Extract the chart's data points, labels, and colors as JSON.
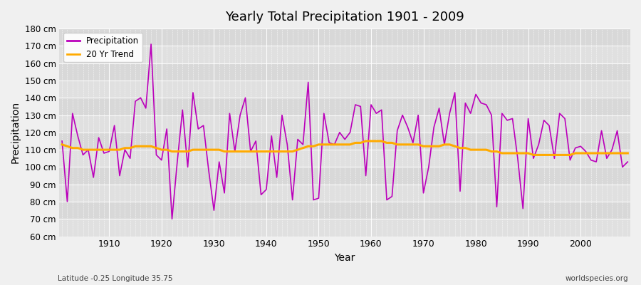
{
  "title": "Yearly Total Precipitation 1901 - 2009",
  "xlabel": "Year",
  "ylabel": "Precipitation",
  "footnote_left": "Latitude -0.25 Longitude 35.75",
  "footnote_right": "worldspecies.org",
  "line_color": "#bb00bb",
  "trend_color": "#ffaa00",
  "ylim": [
    60,
    180
  ],
  "ytick_step": 10,
  "xticks": [
    1910,
    1920,
    1930,
    1940,
    1950,
    1960,
    1970,
    1980,
    1990,
    2000
  ],
  "years": [
    1901,
    1902,
    1903,
    1904,
    1905,
    1906,
    1907,
    1908,
    1909,
    1910,
    1911,
    1912,
    1913,
    1914,
    1915,
    1916,
    1917,
    1918,
    1919,
    1920,
    1921,
    1922,
    1923,
    1924,
    1925,
    1926,
    1927,
    1928,
    1929,
    1930,
    1931,
    1932,
    1933,
    1934,
    1935,
    1936,
    1937,
    1938,
    1939,
    1940,
    1941,
    1942,
    1943,
    1944,
    1945,
    1946,
    1947,
    1948,
    1949,
    1950,
    1951,
    1952,
    1953,
    1954,
    1955,
    1956,
    1957,
    1958,
    1959,
    1960,
    1961,
    1962,
    1963,
    1964,
    1965,
    1966,
    1967,
    1968,
    1969,
    1970,
    1971,
    1972,
    1973,
    1974,
    1975,
    1976,
    1977,
    1978,
    1979,
    1980,
    1981,
    1982,
    1983,
    1984,
    1985,
    1986,
    1987,
    1988,
    1989,
    1990,
    1991,
    1992,
    1993,
    1994,
    1995,
    1996,
    1997,
    1998,
    1999,
    2000,
    2001,
    2002,
    2003,
    2004,
    2005,
    2006,
    2007,
    2008,
    2009
  ],
  "precip": [
    115,
    80,
    131,
    118,
    107,
    110,
    94,
    117,
    108,
    109,
    124,
    95,
    110,
    105,
    138,
    140,
    134,
    171,
    107,
    104,
    122,
    70,
    103,
    133,
    100,
    143,
    122,
    124,
    98,
    75,
    103,
    85,
    131,
    109,
    130,
    140,
    109,
    115,
    84,
    87,
    118,
    94,
    130,
    113,
    81,
    116,
    113,
    149,
    81,
    82,
    131,
    114,
    113,
    120,
    116,
    120,
    136,
    135,
    95,
    136,
    131,
    133,
    81,
    83,
    121,
    130,
    123,
    114,
    130,
    85,
    100,
    123,
    134,
    113,
    131,
    143,
    86,
    137,
    131,
    142,
    137,
    136,
    130,
    77,
    131,
    127,
    128,
    105,
    76,
    128,
    105,
    113,
    127,
    124,
    105,
    131,
    128,
    104,
    111,
    112,
    109,
    104,
    103,
    121,
    105,
    110,
    121,
    100,
    103
  ],
  "trend": [
    113,
    112,
    111,
    111,
    110,
    110,
    110,
    110,
    110,
    110,
    110,
    110,
    111,
    111,
    112,
    112,
    112,
    112,
    111,
    110,
    110,
    109,
    109,
    109,
    109,
    110,
    110,
    110,
    110,
    110,
    110,
    109,
    109,
    109,
    109,
    109,
    109,
    109,
    109,
    109,
    109,
    109,
    109,
    109,
    109,
    110,
    111,
    112,
    112,
    113,
    113,
    113,
    113,
    113,
    113,
    113,
    114,
    114,
    115,
    115,
    115,
    115,
    114,
    114,
    113,
    113,
    113,
    113,
    113,
    112,
    112,
    112,
    112,
    113,
    113,
    112,
    111,
    111,
    110,
    110,
    110,
    110,
    109,
    109,
    108,
    108,
    108,
    108,
    108,
    108,
    107,
    107,
    107,
    107,
    107,
    107,
    107,
    107,
    108,
    108,
    108,
    108,
    108,
    108,
    108,
    108,
    108,
    108,
    108
  ]
}
